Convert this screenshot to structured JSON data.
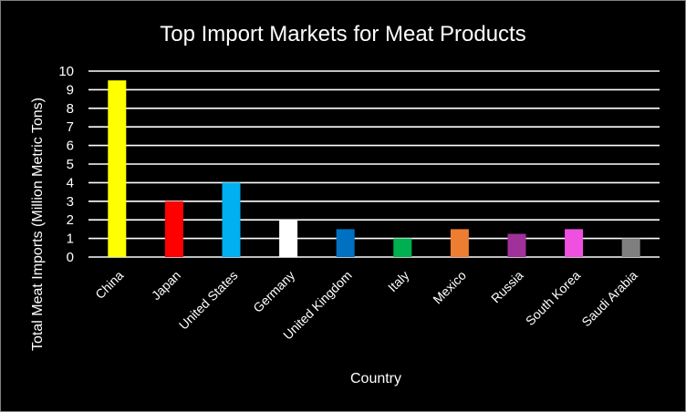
{
  "chart_data": {
    "type": "bar",
    "title": "Top Import Markets for Meat Products",
    "xlabel": "Country",
    "ylabel": "Total Meat Imports (Million Metric Tons)",
    "ylim": [
      0,
      10
    ],
    "yticks": [
      "0",
      "1",
      "2",
      "3",
      "4",
      "5",
      "6",
      "7",
      "8",
      "9",
      "10"
    ],
    "grid": true,
    "legend": "none",
    "categories": [
      "China",
      "Japan",
      "United States",
      "Germany",
      "United Kingdom",
      "Italy",
      "Mexico",
      "Russia",
      "South Korea",
      "Saudi Arabia"
    ],
    "values": [
      9.5,
      3.0,
      4.0,
      2.0,
      1.5,
      1.0,
      1.5,
      1.25,
      1.5,
      1.0
    ],
    "colors": [
      "#ffff00",
      "#ff0000",
      "#00b0f0",
      "#ffffff",
      "#0070c0",
      "#00b050",
      "#ed7d31",
      "#a0309a",
      "#f050e0",
      "#7f7f7f"
    ],
    "background": "#000000",
    "text_color": "#ffffff"
  }
}
